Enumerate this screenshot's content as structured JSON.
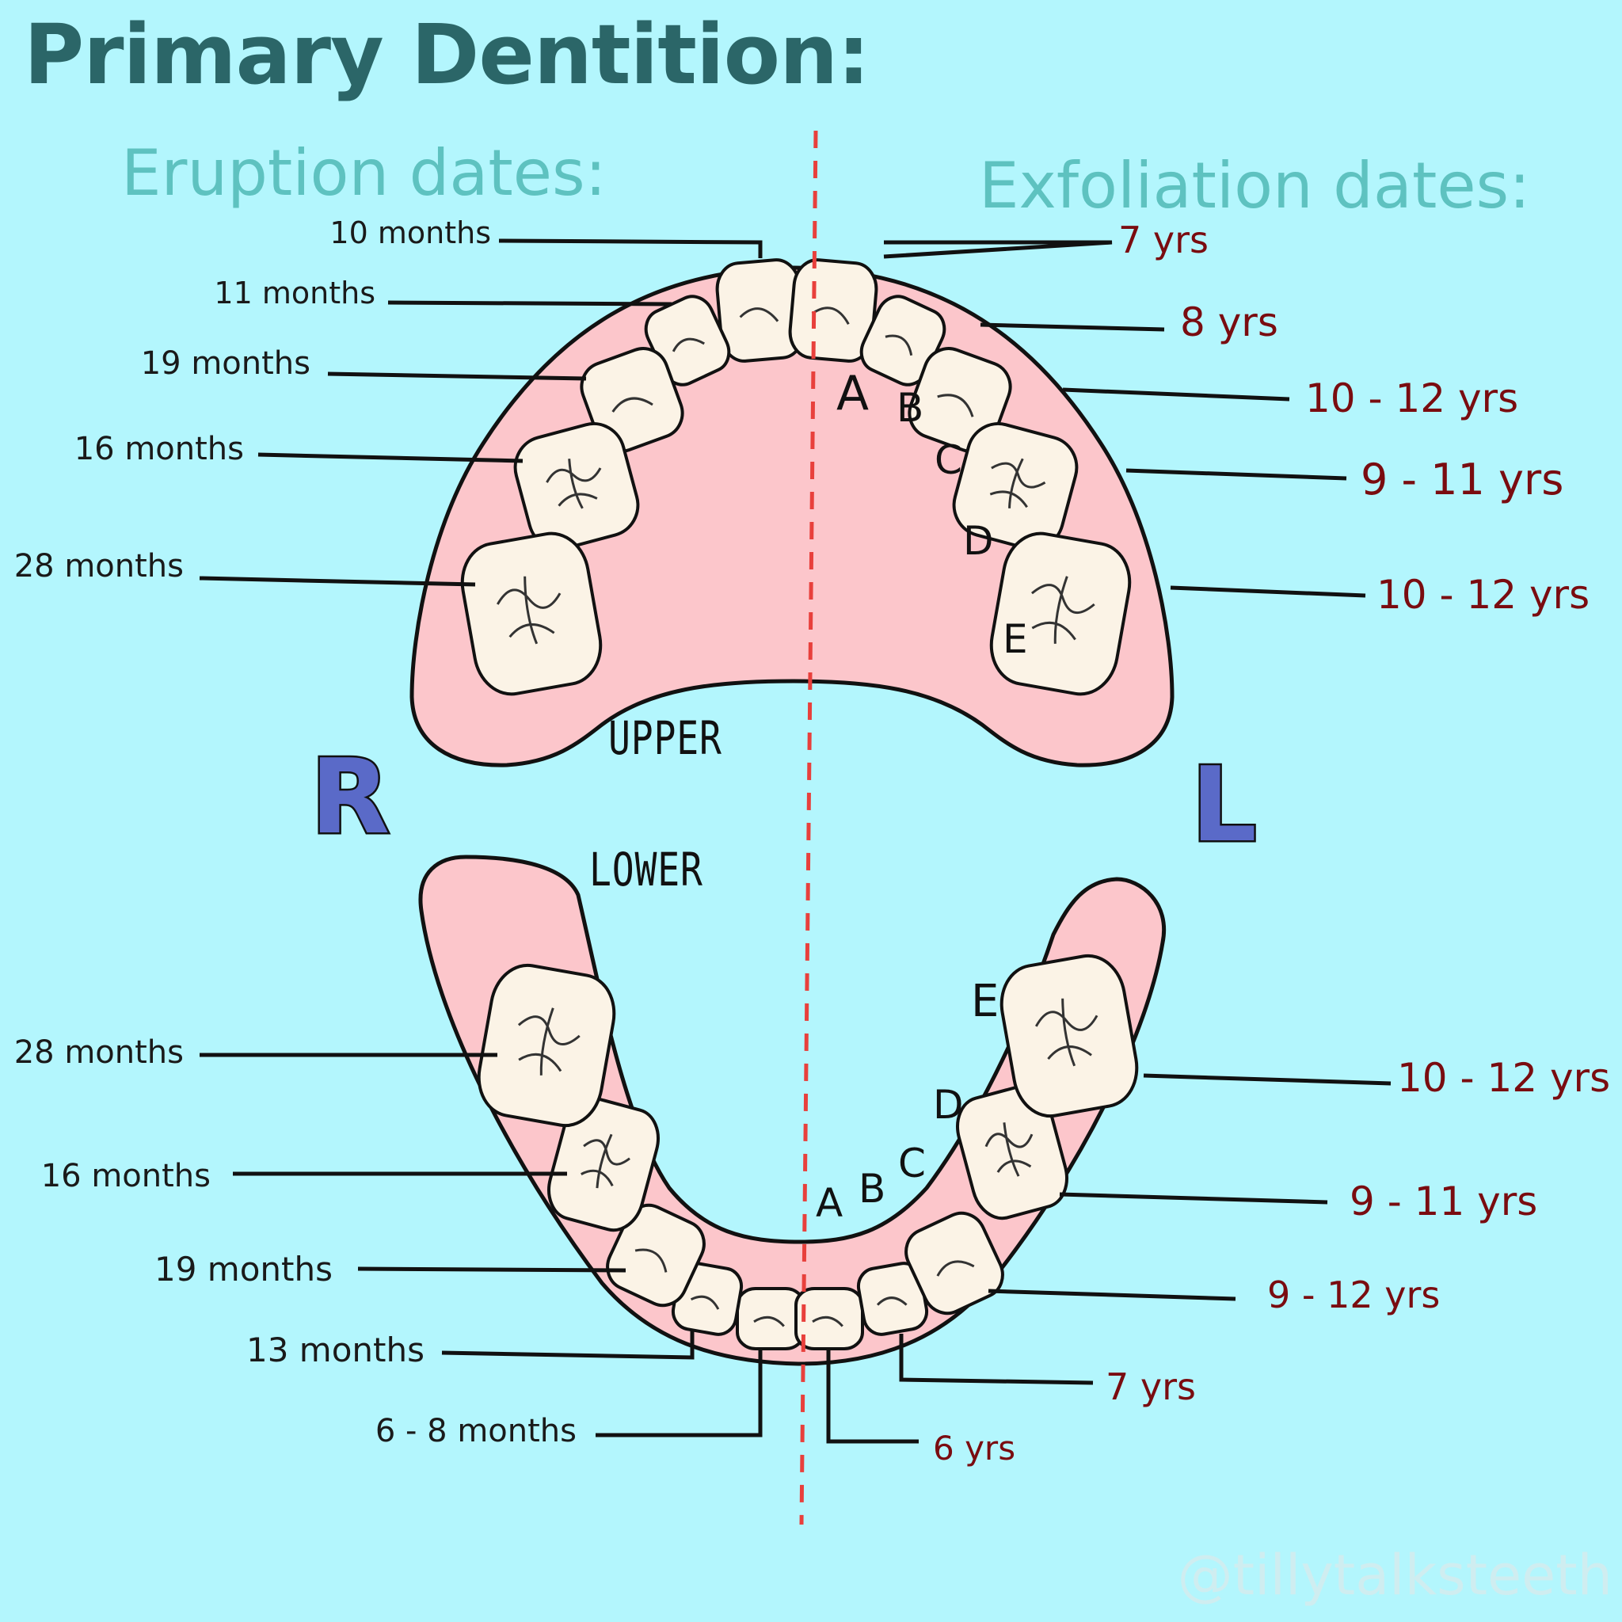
{
  "title": "Primary Dentition:",
  "eruption_heading": "Eruption dates:",
  "exfoliation_heading": "Exfoliation dates:",
  "side_right": "R",
  "side_left": "L",
  "upper_label": "UPPER",
  "lower_label": "LOWER",
  "watermark": "@tillytalksteeth",
  "upper_eruption": [
    "10 months",
    "11 months",
    "19 months",
    "16 months",
    "28 months"
  ],
  "upper_exfoliation": [
    "7 yrs",
    "8 yrs",
    "10 - 12 yrs",
    "9 - 11 yrs",
    "10 - 12 yrs"
  ],
  "lower_eruption": [
    "28 months",
    "16 months",
    "19 months",
    "13 months",
    "6 - 8 months"
  ],
  "lower_exfoliation": [
    "10 - 12 yrs",
    "9 - 11 yrs",
    "9 - 12 yrs",
    "7 yrs",
    "6 yrs"
  ],
  "upper_tooth_letters": [
    "A",
    "B",
    "C",
    "D",
    "E"
  ],
  "lower_tooth_letters": [
    "A",
    "B",
    "C",
    "D",
    "E"
  ],
  "colors": {
    "background": "#b3f6fd",
    "gum": "#fcc6cb",
    "tooth": "#fbf3e6",
    "midline": "#e8403c",
    "title": "#2b6668",
    "heading": "#5ec2c0",
    "exfoliation_text": "#7a0c10",
    "side_letters": "#5a6ac8"
  }
}
